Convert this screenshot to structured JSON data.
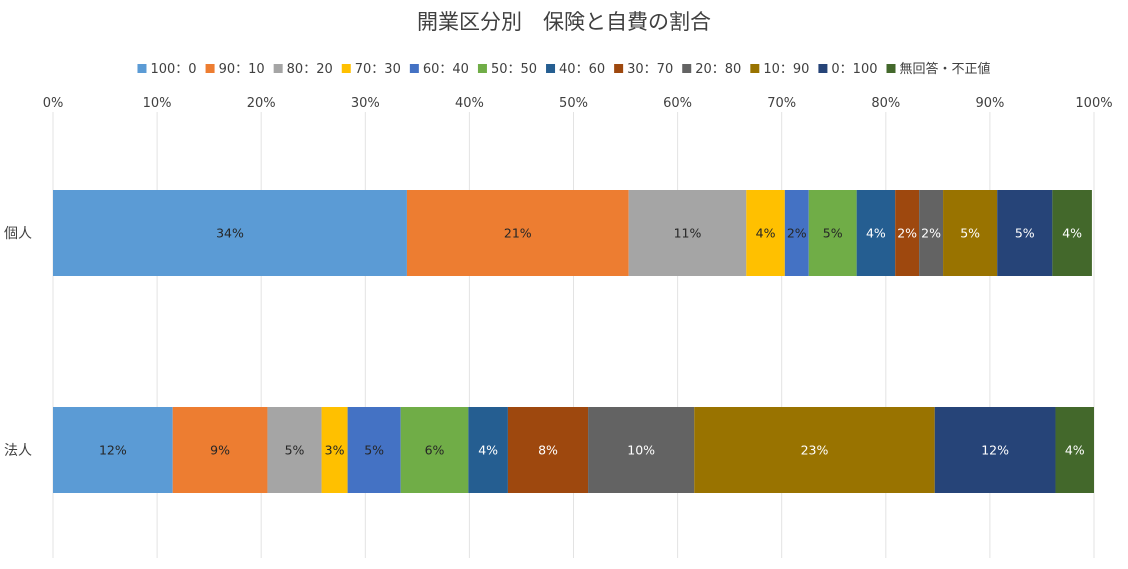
{
  "chart_data": {
    "type": "bar",
    "orientation": "horizontal",
    "stacked": "percent",
    "title": "開業区分別　保険と自費の割合",
    "categories": [
      "個人",
      "法人"
    ],
    "x_ticks": [
      "0%",
      "10%",
      "20%",
      "30%",
      "40%",
      "50%",
      "60%",
      "70%",
      "80%",
      "90%",
      "100%"
    ],
    "xlim": [
      0,
      100
    ],
    "grid": true,
    "legend_position": "top",
    "series": [
      {
        "name": "100：0",
        "color": "#5b9bd5",
        "values": [
          34,
          11.5
        ],
        "labels": [
          "34%",
          "12%"
        ],
        "label_color": "#262626"
      },
      {
        "name": "90：10",
        "color": "#ed7d31",
        "values": [
          21.3,
          9.1
        ],
        "labels": [
          "21%",
          "9%"
        ],
        "label_color": "#262626"
      },
      {
        "name": "80：20",
        "color": "#a5a5a5",
        "values": [
          11.3,
          5.2
        ],
        "labels": [
          "11%",
          "5%"
        ],
        "label_color": "#262626"
      },
      {
        "name": "70：30",
        "color": "#ffc000",
        "values": [
          3.7,
          2.5
        ],
        "labels": [
          "4%",
          "3%"
        ],
        "label_color": "#262626"
      },
      {
        "name": "60：40",
        "color": "#4472c4",
        "values": [
          2.3,
          5.1
        ],
        "labels": [
          "2%",
          "5%"
        ],
        "label_color": "#262626"
      },
      {
        "name": "50：50",
        "color": "#70ad47",
        "values": [
          4.6,
          6.5
        ],
        "labels": [
          "5%",
          "6%"
        ],
        "label_color": "#262626"
      },
      {
        "name": "40：60",
        "color": "#255e91",
        "values": [
          3.7,
          3.8
        ],
        "labels": [
          "4%",
          "4%"
        ],
        "label_color": "#ffffff"
      },
      {
        "name": "30：70",
        "color": "#9e480e",
        "values": [
          2.3,
          7.7
        ],
        "labels": [
          "2%",
          "8%"
        ],
        "label_color": "#ffffff"
      },
      {
        "name": "20：80",
        "color": "#636363",
        "values": [
          2.3,
          10.2
        ],
        "labels": [
          "2%",
          "10%"
        ],
        "label_color": "#ffffff"
      },
      {
        "name": "10：90",
        "color": "#997300",
        "values": [
          5.2,
          23.1
        ],
        "labels": [
          "5%",
          "23%"
        ],
        "label_color": "#ffffff"
      },
      {
        "name": "0：100",
        "color": "#264478",
        "values": [
          5.3,
          11.6
        ],
        "labels": [
          "5%",
          "12%"
        ],
        "label_color": "#ffffff"
      },
      {
        "name": "無回答・不正値",
        "color": "#43682b",
        "values": [
          3.8,
          3.7
        ],
        "labels": [
          "4%",
          "4%"
        ],
        "label_color": "#ffffff"
      }
    ]
  }
}
